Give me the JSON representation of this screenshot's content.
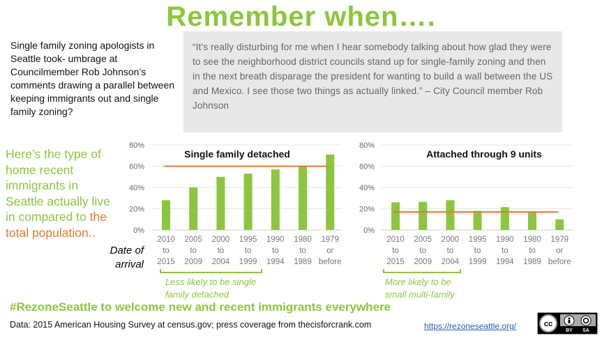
{
  "title": "Remember when….",
  "intro": "Single family zoning apologists in Seattle took- umbrage at Councilmember Rob Johnson’s comments drawing a parallel between keeping immigrants out and single family zoning?",
  "quote": "“It’s really disturbing for me when I hear somebody talking about how glad they were to see the neighborhood district councils stand up for single-family zoning and then in the next breath disparage the president for wanting to build a wall between the US and Mexico. I see those two things as actually linked.” – City Council member Rob Johnson",
  "side_text": {
    "green": "Here’s the type of home  recent immigrants in Seattle actually live in compared to ",
    "orange": "the total population.."
  },
  "date_of_arrival": [
    "Date of",
    "arrival"
  ],
  "notes": {
    "left": [
      "Less likely to be single",
      "family detached"
    ],
    "right": [
      "More  likely to be",
      "small multi-family"
    ]
  },
  "hashtag": "#RezoneSeattle to welcome new and recent immigrants everywhere",
  "source": "Data: 2015 American Housing Survey at census.gov;  press coverage from thecisforcrank.com",
  "link": "https://rezoneseattle.org/",
  "license": {
    "logo": "cc",
    "labels": [
      "BY",
      "SA"
    ]
  },
  "colors": {
    "bar": "#8cc63f",
    "line": "#e8772e",
    "title": "#8cc63f"
  },
  "chart_data": [
    {
      "type": "bar",
      "title": "Single family detached",
      "categories": [
        [
          "2010",
          "to",
          "2015"
        ],
        [
          "2005",
          "to",
          "2009"
        ],
        [
          "2000",
          "to",
          "2004"
        ],
        [
          "1995",
          "to",
          "1999"
        ],
        [
          "1990",
          "to",
          "1994"
        ],
        [
          "1980",
          "to",
          "1989"
        ],
        [
          "1979",
          "or",
          "before"
        ]
      ],
      "values": [
        28,
        40,
        50,
        53,
        57,
        60,
        71
      ],
      "reference_line": 60,
      "ylim": [
        0,
        80
      ],
      "yticks": [
        "0%",
        "20%",
        "40%",
        "60%",
        "80%"
      ],
      "grid": true
    },
    {
      "type": "bar",
      "title": "Attached through  9 units",
      "categories": [
        [
          "2010",
          "to",
          "2015"
        ],
        [
          "2005",
          "to",
          "2009"
        ],
        [
          "2000",
          "to",
          "2004"
        ],
        [
          "1995",
          "to",
          "1999"
        ],
        [
          "1990",
          "to",
          "1994"
        ],
        [
          "1980",
          "to",
          "1989"
        ],
        [
          "1979",
          "or",
          "before"
        ]
      ],
      "values": [
        26,
        26.5,
        28,
        18,
        21.5,
        17,
        10
      ],
      "reference_line": 17,
      "ylim": [
        0,
        80
      ],
      "yticks": [
        "0%",
        "20%",
        "40%",
        "60%",
        "80%"
      ],
      "grid": true
    }
  ]
}
